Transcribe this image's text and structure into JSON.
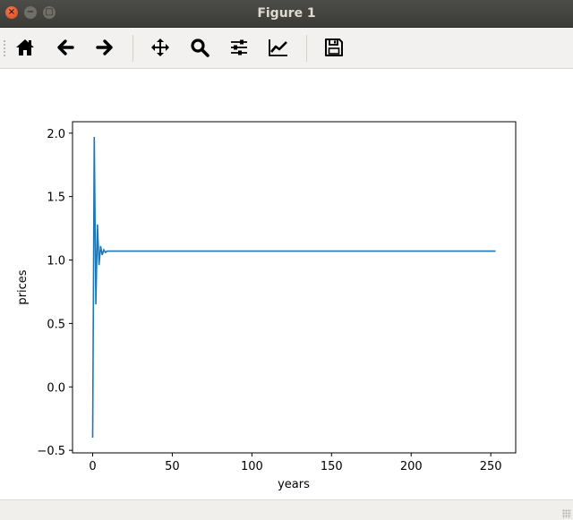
{
  "window": {
    "title": "Figure 1",
    "buttons": {
      "close": "×",
      "minimize": "−",
      "maximize": "□"
    }
  },
  "toolbar": {
    "items": [
      {
        "name": "home",
        "icon": "home-icon"
      },
      {
        "name": "back",
        "icon": "arrow-left-icon"
      },
      {
        "name": "forward",
        "icon": "arrow-right-icon"
      },
      {
        "name": "pan",
        "icon": "move-icon"
      },
      {
        "name": "zoom",
        "icon": "magnifier-icon"
      },
      {
        "name": "configure-subplots",
        "icon": "sliders-icon"
      },
      {
        "name": "edit-axis",
        "icon": "line-chart-icon"
      },
      {
        "name": "save",
        "icon": "floppy-disk-icon"
      }
    ]
  },
  "chart_data": {
    "type": "line",
    "title": "",
    "xlabel": "years",
    "ylabel": "prices",
    "xlim": [
      -12.65,
      265.65
    ],
    "ylim": [
      -0.52,
      2.09
    ],
    "xticks": [
      0,
      50,
      100,
      150,
      200,
      250
    ],
    "xtick_labels": [
      "0",
      "50",
      "100",
      "150",
      "200",
      "250"
    ],
    "yticks": [
      -0.5,
      0.0,
      0.5,
      1.0,
      1.5,
      2.0
    ],
    "ytick_labels": [
      "−0.5",
      "0.0",
      "0.5",
      "1.0",
      "1.5",
      "2.0"
    ],
    "grid": false,
    "color": "#1f77b4",
    "series": [
      {
        "x": [
          0,
          1,
          2,
          3,
          4,
          5,
          6,
          7,
          8,
          9,
          10,
          253
        ],
        "y": [
          -0.4,
          1.97,
          0.65,
          1.28,
          0.96,
          1.11,
          1.04,
          1.08,
          1.06,
          1.07,
          1.07,
          1.07
        ]
      }
    ]
  }
}
